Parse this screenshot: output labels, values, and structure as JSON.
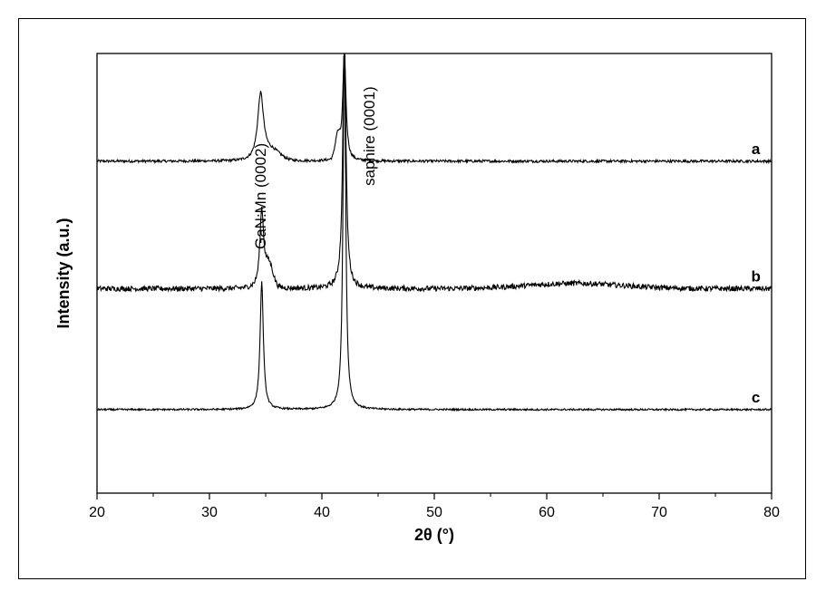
{
  "chart_data": {
    "type": "line",
    "xlabel": "2θ (°)",
    "ylabel": "Intensity (a.u.)",
    "xlim": [
      20,
      80
    ],
    "x_ticks": [
      20,
      30,
      40,
      50,
      60,
      70,
      80
    ],
    "y_ticks_shown": false,
    "grid": false,
    "annotations": [
      {
        "text": "GaN:Mn (0002)",
        "x": 34.5,
        "orientation": "vertical"
      },
      {
        "text": "saphire (0001)",
        "x": 44.2,
        "orientation": "vertical"
      }
    ],
    "series": [
      {
        "name": "a",
        "baseline": 0.755,
        "noise": 0.003,
        "peaks": [
          {
            "center": 34.55,
            "height": 0.15,
            "width": 0.55
          },
          {
            "center": 42.0,
            "height": 0.245,
            "width": 0.3
          }
        ],
        "shoulders": [
          {
            "center": 35.6,
            "height": 0.02,
            "width": 1.0
          },
          {
            "center": 41.4,
            "height": 0.05,
            "width": 0.3
          }
        ],
        "label_x": 78.6
      },
      {
        "name": "b",
        "baseline": 0.465,
        "noise": 0.006,
        "peaks": [
          {
            "center": 34.65,
            "height": 0.175,
            "width": 0.35
          },
          {
            "center": 42.0,
            "height": 0.57,
            "width": 0.3
          }
        ],
        "shoulders": [
          {
            "center": 35.3,
            "height": 0.05,
            "width": 0.5
          },
          {
            "center": 62.5,
            "height": 0.012,
            "width": 6.0
          }
        ],
        "label_x": 78.6
      },
      {
        "name": "c",
        "baseline": 0.19,
        "noise": 0.002,
        "peaks": [
          {
            "center": 34.65,
            "height": 0.29,
            "width": 0.3
          },
          {
            "center": 42.0,
            "height": 0.83,
            "width": 0.25
          }
        ],
        "shoulders": [],
        "label_x": 78.6
      }
    ]
  }
}
